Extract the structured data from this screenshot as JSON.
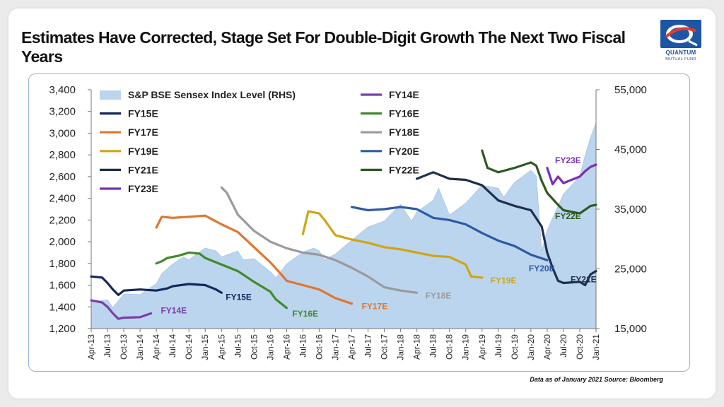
{
  "title": "Estimates Have Corrected, Stage Set For Double-Digit Growth The Next Two Fiscal Years",
  "logo": {
    "name": "QUANTUM",
    "sub": "MUTUAL FUND"
  },
  "source_note": "Data as of January 2021  Source: Bloomberg",
  "chart_data": {
    "type": "line",
    "x_ticks": [
      "Apr-13",
      "Jul-13",
      "Oct-13",
      "Jan-14",
      "Apr-14",
      "Jul-14",
      "Oct-14",
      "Jan-15",
      "Apr-15",
      "Jul-15",
      "Oct-15",
      "Jan-16",
      "Apr-16",
      "Jul-16",
      "Oct-16",
      "Jan-17",
      "Apr-17",
      "Jul-17",
      "Oct-17",
      "Jan-18",
      "Apr-18",
      "Jul-18",
      "Oct-18",
      "Jan-19",
      "Apr-19",
      "Jul-19",
      "Oct-19",
      "Jan-20",
      "Apr-20",
      "Jul-20",
      "Oct-20",
      "Jan-21"
    ],
    "y_left": {
      "ticks": [
        "1,200",
        "1,400",
        "1,600",
        "1,800",
        "2,000",
        "2,200",
        "2,400",
        "2,600",
        "2,800",
        "3,000",
        "3,200",
        "3,400"
      ],
      "min": 1200,
      "max": 3400
    },
    "y_right": {
      "ticks": [
        "15,000",
        "25,000",
        "35,000",
        "45,000",
        "55,000"
      ],
      "min": 15000,
      "max": 55000
    },
    "area": {
      "name": "S&P BSE Sensex Index Level (RHS)",
      "color": "#bcd5ee",
      "points": [
        [
          "Apr-13",
          19500
        ],
        [
          "Jul-13",
          19800
        ],
        [
          "Aug-13",
          18500
        ],
        [
          "Oct-13",
          20800
        ],
        [
          "Jan-14",
          20700
        ],
        [
          "Apr-14",
          22500
        ],
        [
          "May-14",
          24200
        ],
        [
          "Jul-14",
          25800
        ],
        [
          "Sep-14",
          27000
        ],
        [
          "Oct-14",
          26500
        ],
        [
          "Jan-15",
          28500
        ],
        [
          "Mar-15",
          28000
        ],
        [
          "Apr-15",
          27000
        ],
        [
          "Jul-15",
          28000
        ],
        [
          "Aug-15",
          26500
        ],
        [
          "Oct-15",
          26700
        ],
        [
          "Jan-16",
          24500
        ],
        [
          "Feb-16",
          23500
        ],
        [
          "Apr-16",
          25800
        ],
        [
          "Jul-16",
          27800
        ],
        [
          "Sep-16",
          28500
        ],
        [
          "Oct-16",
          28000
        ],
        [
          "Nov-16",
          26500
        ],
        [
          "Jan-17",
          27500
        ],
        [
          "Apr-17",
          29800
        ],
        [
          "Jul-17",
          32000
        ],
        [
          "Oct-17",
          33000
        ],
        [
          "Jan-18",
          35800
        ],
        [
          "Mar-18",
          33000
        ],
        [
          "Apr-18",
          34500
        ],
        [
          "Jul-18",
          36500
        ],
        [
          "Aug-18",
          38500
        ],
        [
          "Oct-18",
          34000
        ],
        [
          "Jan-19",
          36000
        ],
        [
          "Apr-19",
          39000
        ],
        [
          "Jul-19",
          38500
        ],
        [
          "Aug-19",
          37000
        ],
        [
          "Oct-19",
          39500
        ],
        [
          "Jan-20",
          41500
        ],
        [
          "Feb-20",
          40500
        ],
        [
          "Mar-20",
          28000
        ],
        [
          "Apr-20",
          31500
        ],
        [
          "Jul-20",
          37500
        ],
        [
          "Oct-20",
          40500
        ],
        [
          "Nov-20",
          44000
        ],
        [
          "Dec-20",
          47000
        ],
        [
          "Jan-21",
          49500
        ],
        [
          "Jan-21",
          47500
        ]
      ]
    },
    "series": [
      {
        "name": "FY14E",
        "color": "#7b3ea8",
        "points": [
          [
            "Apr-13",
            1460
          ],
          [
            "Jun-13",
            1440
          ],
          [
            "Jul-13",
            1400
          ],
          [
            "Aug-13",
            1340
          ],
          [
            "Sep-13",
            1290
          ],
          [
            "Oct-13",
            1300
          ],
          [
            "Jan-14",
            1305
          ],
          [
            "Mar-14",
            1340
          ]
        ]
      },
      {
        "name": "FY15E",
        "color": "#13285c",
        "points": [
          [
            "Apr-13",
            1680
          ],
          [
            "Jun-13",
            1670
          ],
          [
            "Jul-13",
            1620
          ],
          [
            "Aug-13",
            1560
          ],
          [
            "Sep-13",
            1510
          ],
          [
            "Oct-13",
            1550
          ],
          [
            "Jan-14",
            1560
          ],
          [
            "Apr-14",
            1550
          ],
          [
            "Jun-14",
            1570
          ],
          [
            "Jul-14",
            1590
          ],
          [
            "Oct-14",
            1610
          ],
          [
            "Jan-15",
            1600
          ],
          [
            "Mar-15",
            1560
          ],
          [
            "Apr-15",
            1530
          ]
        ]
      },
      {
        "name": "FY16E",
        "color": "#3f8a2a",
        "points": [
          [
            "Apr-14",
            1800
          ],
          [
            "May-14",
            1820
          ],
          [
            "Jun-14",
            1850
          ],
          [
            "Aug-14",
            1870
          ],
          [
            "Oct-14",
            1900
          ],
          [
            "Dec-14",
            1890
          ],
          [
            "Jan-15",
            1850
          ],
          [
            "Apr-15",
            1790
          ],
          [
            "Jul-15",
            1730
          ],
          [
            "Oct-15",
            1630
          ],
          [
            "Jan-16",
            1540
          ],
          [
            "Feb-16",
            1470
          ],
          [
            "Apr-16",
            1390
          ]
        ]
      },
      {
        "name": "FY17E",
        "color": "#e0762e",
        "points": [
          [
            "Apr-14",
            2130
          ],
          [
            "May-14",
            2230
          ],
          [
            "Jul-14",
            2220
          ],
          [
            "Oct-14",
            2230
          ],
          [
            "Jan-15",
            2240
          ],
          [
            "Apr-15",
            2160
          ],
          [
            "Jul-15",
            2090
          ],
          [
            "Oct-15",
            1950
          ],
          [
            "Jan-16",
            1810
          ],
          [
            "Mar-16",
            1700
          ],
          [
            "Apr-16",
            1640
          ],
          [
            "Jul-16",
            1600
          ],
          [
            "Oct-16",
            1560
          ],
          [
            "Jan-17",
            1480
          ],
          [
            "Apr-17",
            1430
          ]
        ]
      },
      {
        "name": "FY18E",
        "color": "#9a9a9a",
        "points": [
          [
            "Apr-15",
            2500
          ],
          [
            "May-15",
            2450
          ],
          [
            "Jul-15",
            2250
          ],
          [
            "Oct-15",
            2100
          ],
          [
            "Jan-16",
            2000
          ],
          [
            "Apr-16",
            1940
          ],
          [
            "Jul-16",
            1900
          ],
          [
            "Oct-16",
            1880
          ],
          [
            "Jan-17",
            1830
          ],
          [
            "Apr-17",
            1760
          ],
          [
            "Jul-17",
            1680
          ],
          [
            "Oct-17",
            1580
          ],
          [
            "Jan-18",
            1550
          ],
          [
            "Apr-18",
            1530
          ]
        ]
      },
      {
        "name": "FY19E",
        "color": "#cfa515",
        "points": [
          [
            "Jul-16",
            2070
          ],
          [
            "Aug-16",
            2280
          ],
          [
            "Oct-16",
            2260
          ],
          [
            "Nov-16",
            2200
          ],
          [
            "Jan-17",
            2060
          ],
          [
            "Apr-17",
            2020
          ],
          [
            "Jul-17",
            1990
          ],
          [
            "Oct-17",
            1950
          ],
          [
            "Jan-18",
            1930
          ],
          [
            "Apr-18",
            1900
          ],
          [
            "Jul-18",
            1870
          ],
          [
            "Oct-18",
            1860
          ],
          [
            "Jan-19",
            1790
          ],
          [
            "Feb-19",
            1680
          ],
          [
            "Apr-19",
            1670
          ]
        ]
      },
      {
        "name": "FY20E",
        "color": "#2d5aa5",
        "points": [
          [
            "Apr-17",
            2320
          ],
          [
            "Jul-17",
            2290
          ],
          [
            "Oct-17",
            2300
          ],
          [
            "Jan-18",
            2320
          ],
          [
            "Apr-18",
            2300
          ],
          [
            "Jul-18",
            2220
          ],
          [
            "Oct-18",
            2200
          ],
          [
            "Jan-19",
            2160
          ],
          [
            "Apr-19",
            2080
          ],
          [
            "Jul-19",
            2010
          ],
          [
            "Oct-19",
            1960
          ],
          [
            "Jan-20",
            1880
          ],
          [
            "Apr-20",
            1830
          ]
        ]
      },
      {
        "name": "FY21E",
        "color": "#1f2f4a",
        "points": [
          [
            "Apr-18",
            2580
          ],
          [
            "Jul-18",
            2640
          ],
          [
            "Oct-18",
            2580
          ],
          [
            "Jan-19",
            2570
          ],
          [
            "Apr-19",
            2520
          ],
          [
            "Jul-19",
            2380
          ],
          [
            "Oct-19",
            2330
          ],
          [
            "Jan-20",
            2290
          ],
          [
            "Mar-20",
            2140
          ],
          [
            "Apr-20",
            1900
          ],
          [
            "May-20",
            1760
          ],
          [
            "Jun-20",
            1640
          ],
          [
            "Jul-20",
            1620
          ],
          [
            "Oct-20",
            1630
          ],
          [
            "Nov-20",
            1600
          ],
          [
            "Dec-20",
            1700
          ],
          [
            "Jan-21",
            1730
          ]
        ]
      },
      {
        "name": "FY22E",
        "color": "#2d5a1f",
        "points": [
          [
            "Apr-19",
            2840
          ],
          [
            "May-19",
            2680
          ],
          [
            "Jul-19",
            2640
          ],
          [
            "Oct-19",
            2680
          ],
          [
            "Jan-20",
            2730
          ],
          [
            "Feb-20",
            2700
          ],
          [
            "Mar-20",
            2560
          ],
          [
            "Apr-20",
            2450
          ],
          [
            "Jun-20",
            2340
          ],
          [
            "Jul-20",
            2290
          ],
          [
            "Oct-20",
            2260
          ],
          [
            "Dec-20",
            2330
          ],
          [
            "Jan-21",
            2340
          ]
        ]
      },
      {
        "name": "FY23E",
        "color": "#7a2fb0",
        "points": [
          [
            "Apr-20",
            2680
          ],
          [
            "May-20",
            2530
          ],
          [
            "Jun-20",
            2600
          ],
          [
            "Jul-20",
            2540
          ],
          [
            "Oct-20",
            2600
          ],
          [
            "Nov-20",
            2650
          ],
          [
            "Dec-20",
            2690
          ],
          [
            "Jan-21",
            2710
          ]
        ]
      }
    ]
  }
}
